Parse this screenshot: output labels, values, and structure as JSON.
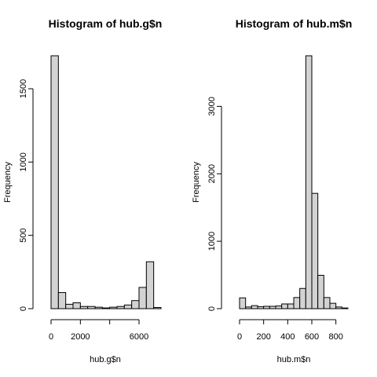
{
  "chart_data": [
    {
      "type": "bar",
      "subtype": "histogram",
      "title": "Histogram of hub.g$n",
      "xlabel": "hub.g$n",
      "ylabel": "Frequency",
      "bin_width": 500,
      "x_start": 0,
      "values": [
        1725,
        110,
        30,
        40,
        15,
        15,
        10,
        5,
        10,
        15,
        25,
        55,
        145,
        320,
        8
      ],
      "xlim": [
        0,
        7500
      ],
      "ylim": [
        0,
        1725
      ],
      "x_ticks": [
        0,
        2000,
        4000,
        6000
      ],
      "x_tick_labels": [
        "0",
        "2000",
        "",
        "6000"
      ],
      "y_ticks": [
        0,
        500,
        1000,
        1500
      ],
      "y_tick_labels": [
        "0",
        "500",
        "1000",
        "1500"
      ],
      "bar_color": "#d3d3d3"
    },
    {
      "type": "bar",
      "subtype": "histogram",
      "title": "Histogram of hub.m$n",
      "xlabel": "hub.m$n",
      "ylabel": "Frequency",
      "bin_width": 50,
      "x_start": 0,
      "values": [
        160,
        25,
        45,
        30,
        35,
        35,
        40,
        70,
        70,
        165,
        300,
        3750,
        1710,
        495,
        165,
        80,
        25,
        10
      ],
      "xlim": [
        0,
        900
      ],
      "ylim": [
        0,
        3750
      ],
      "x_ticks": [
        0,
        200,
        400,
        600,
        800
      ],
      "x_tick_labels": [
        "0",
        "200",
        "400",
        "600",
        "800"
      ],
      "y_ticks": [
        0,
        1000,
        2000,
        3000
      ],
      "y_tick_labels": [
        "0",
        "1000",
        "2000",
        "3000"
      ],
      "bar_color": "#d3d3d3"
    }
  ]
}
